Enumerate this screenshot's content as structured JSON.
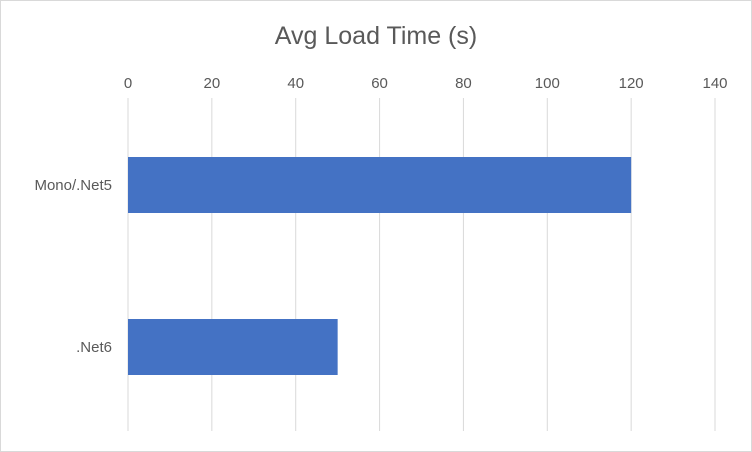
{
  "chart_data": {
    "type": "bar",
    "orientation": "horizontal",
    "title": "Avg Load Time (s)",
    "categories": [
      "Mono/.Net5",
      ".Net6"
    ],
    "values": [
      120,
      50
    ],
    "xlim": [
      0,
      140
    ],
    "xticks": [
      "0",
      "20",
      "40",
      "60",
      "80",
      "100",
      "120",
      "140"
    ],
    "xtick_values": [
      0,
      20,
      40,
      60,
      80,
      100,
      120,
      140
    ],
    "xaxis_position": "top",
    "grid": true,
    "legend": "none",
    "bar_color": "#4472c4",
    "grid_color": "#d9d9d9",
    "text_color": "#595959"
  }
}
